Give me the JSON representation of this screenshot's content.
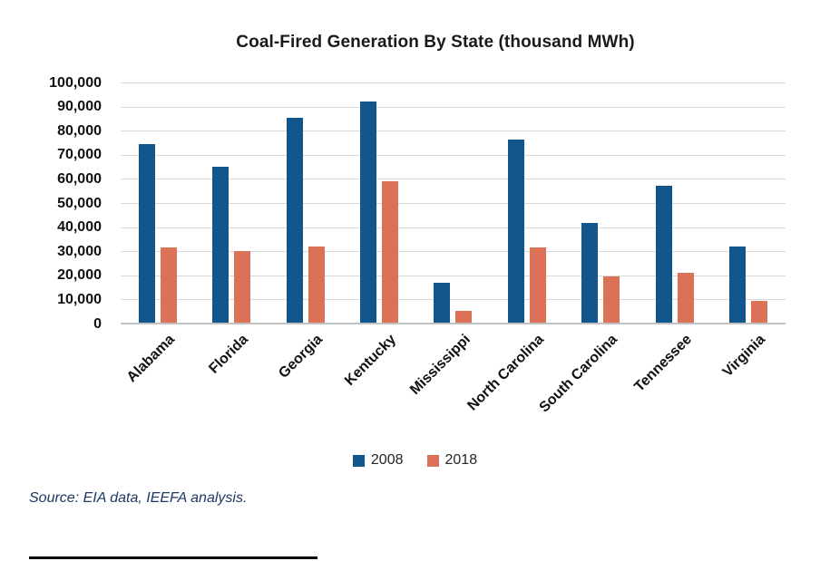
{
  "title": "Coal-Fired Generation By State (thousand MWh)",
  "source_note": "Source: EIA data, IEEFA analysis.",
  "chart_data": {
    "type": "bar",
    "title": "Coal-Fired Generation By State (thousand MWh)",
    "categories": [
      "Alabama",
      "Florida",
      "Georgia",
      "Kentucky",
      "Mississippi",
      "North Carolina",
      "South Carolina",
      "Tennessee",
      "Virginia"
    ],
    "series": [
      {
        "name": "2008",
        "color": "#10568C",
        "values": [
          74500,
          65200,
          85500,
          92000,
          16800,
          76400,
          41800,
          57000,
          32000
        ]
      },
      {
        "name": "2018",
        "color": "#DB7257",
        "values": [
          31700,
          30100,
          32000,
          59000,
          5200,
          31700,
          19400,
          21000,
          9300
        ]
      }
    ],
    "ylim": [
      0,
      100000
    ],
    "ytick_interval": 10000,
    "ytick_labels": [
      "100,000",
      "90,000",
      "80,000",
      "70,000",
      "60,000",
      "50,000",
      "40,000",
      "30,000",
      "20,000",
      "10,000",
      "0"
    ],
    "xlabel": "",
    "ylabel": "",
    "grid": true,
    "legend_position": "bottom"
  },
  "styles": {
    "gridline_color": "#D9D9D9",
    "axis_color": "#C0C0C0",
    "title_color": "#1A1A1A",
    "tick_label_color": "#111111",
    "legend_text_color": "#262626",
    "source_text_color": "#1F3864",
    "footnote_rule_color": "#000000"
  }
}
